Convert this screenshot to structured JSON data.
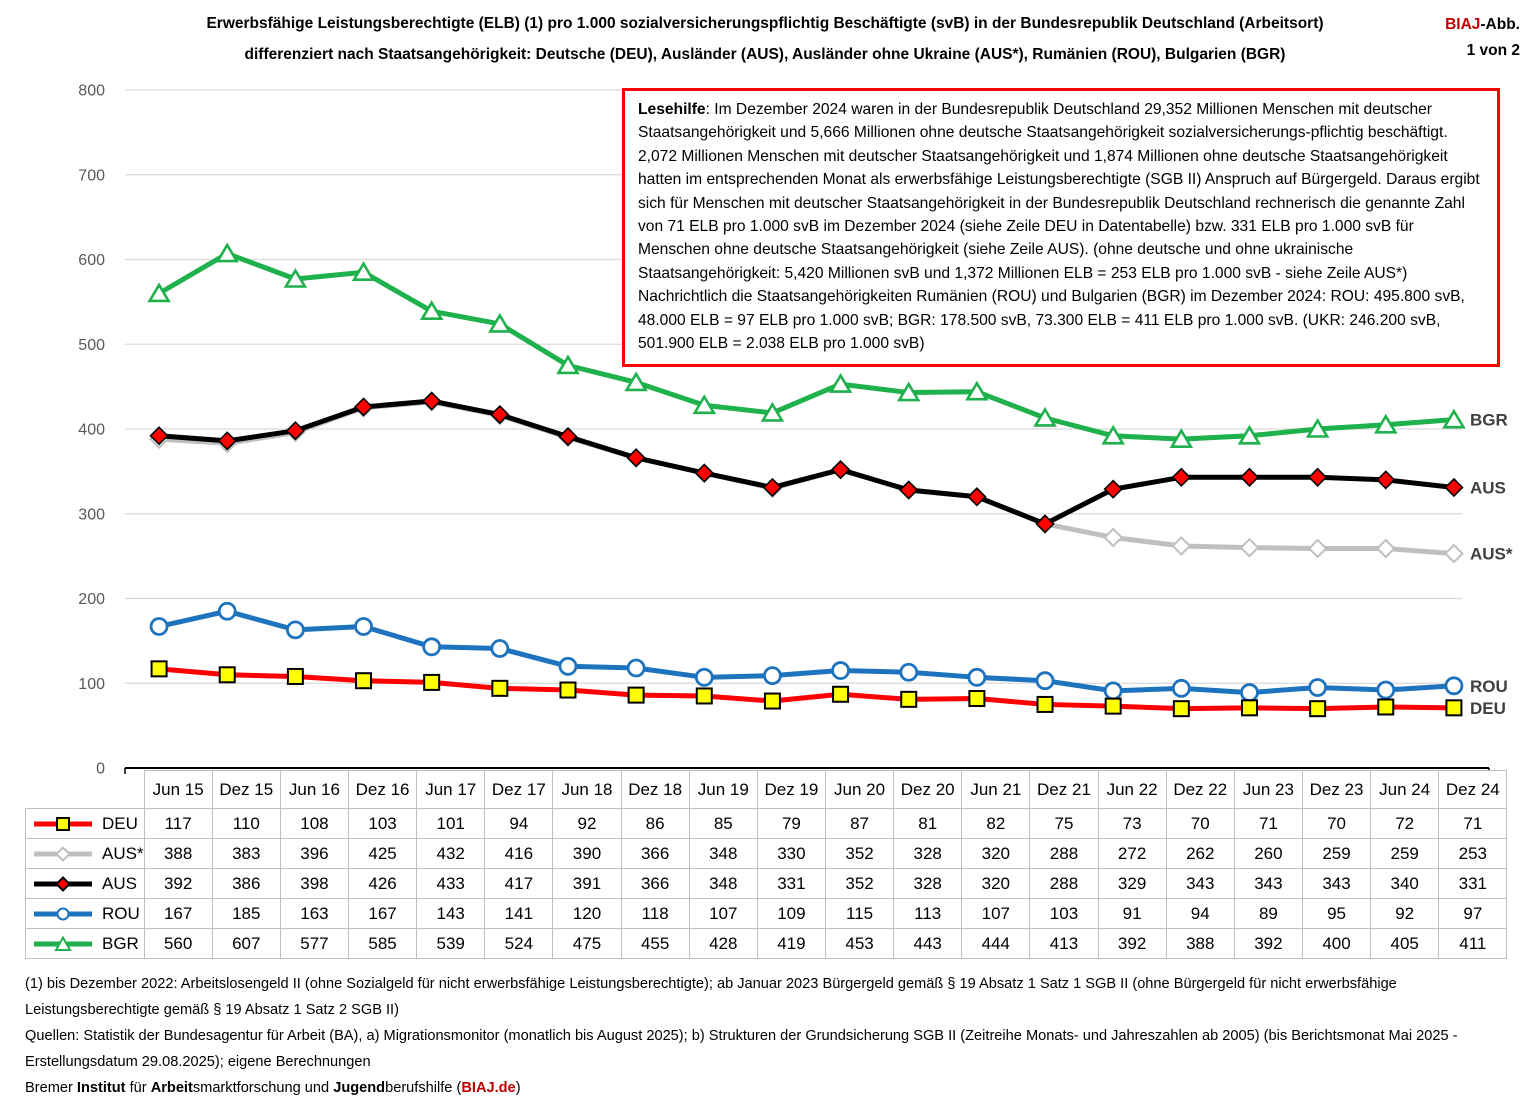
{
  "header": {
    "title_line1": "Erwerbsfähige Leistungsberechtigte (ELB) (1) pro 1.000 sozialversicherungspflichtig Beschäftigte (svB) in der Bundesrepublik Deutschland (Arbeitsort)",
    "title_line2": "differenziert nach Staatsangehörigkeit: Deutsche (DEU),  Ausländer (AUS),  Ausländer ohne Ukraine (AUS*), Rumänien (ROU), Bulgarien (BGR)",
    "corner": {
      "brand": "BIAJ",
      "suffix": "-Abb.",
      "page": "1 von 2",
      "brand_color": "#C00000"
    }
  },
  "lesehilfe": {
    "label": "Lesehilfe",
    "text": ": Im Dezember 2024 waren in der Bundesrepublik Deutschland 29,352 Millionen Menschen mit deutscher Staatsangehörigkeit und 5,666 Millionen ohne deutsche Staatsangehörigkeit sozialversicherungs-pflichtig beschäftigt. 2,072 Millionen Menschen mit deutscher Staatsangehörigkeit und 1,874 Millionen ohne deutsche Staatsangehörigkeit hatten im entsprechenden Monat als erwerbsfähige Leistungsberechtigte (SGB II) Anspruch auf Bürgergeld. Daraus ergibt sich für Menschen mit deutscher Staatsangehörigkeit in der Bundesrepublik Deutschland rechnerisch die genannte Zahl von 71 ELB pro 1.000 svB im Dezember 2024 (siehe Zeile DEU in Datentabelle) bzw. 331 ELB pro 1.000 svB für Menschen ohne deutsche Staatsangehörigkeit (siehe Zeile AUS). (ohne deutsche und ohne ukrainische Staatsangehörigkeit: 5,420 Millionen svB und 1,372 Millionen ELB = 253 ELB pro 1.000 svB - siehe Zeile AUS*) Nachrichtlich die Staatsangehörigkeiten Rumänien (ROU) und Bulgarien (BGR) im Dezember 2024: ROU: 495.800 svB, 48.000 ELB = 97 ELB pro 1.000 svB; BGR: 178.500 svB, 73.300 ELB = 411 ELB pro 1.000 svB. (UKR: 246.200 svB,  501.900 ELB = 2.038 ELB pro 1.000 svB)",
    "border_color": "#FF0000"
  },
  "chart_data": {
    "type": "line",
    "title": "",
    "xlabel": "",
    "ylabel": "",
    "ylim": [
      0,
      800
    ],
    "ytick_step": 100,
    "grid": true,
    "grid_color": "#D9D9D9",
    "axis_color": "#000000",
    "tick_label_color": "#595959",
    "right_label_color": "#3F3F3F",
    "categories": [
      "Jun 15",
      "Dez 15",
      "Jun 16",
      "Dez 16",
      "Jun 17",
      "Dez 17",
      "Jun 18",
      "Dez 18",
      "Jun 19",
      "Dez 19",
      "Jun 20",
      "Dez 20",
      "Jun 21",
      "Dez 21",
      "Jun 22",
      "Dez 22",
      "Jun 23",
      "Dez 23",
      "Jun 24",
      "Dez 24"
    ],
    "series": [
      {
        "name": "DEU",
        "color": "#FF0000",
        "marker": "square",
        "marker_fill": "#FFFF00",
        "marker_edge": "#000000",
        "values": [
          117,
          110,
          108,
          103,
          101,
          94,
          92,
          86,
          85,
          79,
          87,
          81,
          82,
          75,
          73,
          70,
          71,
          70,
          72,
          71
        ]
      },
      {
        "name": "AUS*",
        "color": "#BFBFBF",
        "marker": "diamond",
        "marker_fill": "#FFFFFF",
        "marker_edge": "#BFBFBF",
        "values": [
          388,
          383,
          396,
          425,
          432,
          416,
          390,
          366,
          348,
          330,
          352,
          328,
          320,
          288,
          272,
          262,
          260,
          259,
          259,
          253
        ]
      },
      {
        "name": "AUS",
        "color": "#000000",
        "marker": "diamond",
        "marker_fill": "#FF0000",
        "marker_edge": "#000000",
        "values": [
          392,
          386,
          398,
          426,
          433,
          417,
          391,
          366,
          348,
          331,
          352,
          328,
          320,
          288,
          329,
          343,
          343,
          343,
          340,
          331
        ]
      },
      {
        "name": "ROU",
        "color": "#1E73BE",
        "marker": "circle",
        "marker_fill": "#FFFFFF",
        "marker_edge": "#1E73BE",
        "values": [
          167,
          185,
          163,
          167,
          143,
          141,
          120,
          118,
          107,
          109,
          115,
          113,
          107,
          103,
          91,
          94,
          89,
          95,
          92,
          97
        ]
      },
      {
        "name": "BGR",
        "color": "#1FB14C",
        "marker": "triangle",
        "marker_fill": "#FFFFFF",
        "marker_edge": "#1FB14C",
        "values": [
          560,
          607,
          577,
          585,
          539,
          524,
          475,
          455,
          428,
          419,
          453,
          443,
          444,
          413,
          392,
          388,
          392,
          400,
          405,
          411
        ]
      }
    ],
    "draw_order": [
      "AUS*",
      "AUS",
      "BGR",
      "ROU",
      "DEU"
    ],
    "right_labels": [
      "BGR",
      "AUS",
      "AUS*",
      "ROU",
      "DEU"
    ]
  },
  "table": {
    "row_order": [
      "DEU",
      "AUS*",
      "AUS",
      "ROU",
      "BGR"
    ],
    "border_color": "#BFBFBF"
  },
  "footnotes": {
    "note1": "(1) bis Dezember 2022: Arbeitslosengeld II (ohne Sozialgeld für nicht erwerbsfähige Leistungsberechtigte); ab Januar 2023  Bürgergeld gemäß § 19 Absatz 1 Satz 1 SGB II (ohne Bürgergeld für nicht erwerbsfähige Leistungsberechtigte gemäß § 19 Absatz 1 Satz 2 SGB II)",
    "sources": "Quellen: Statistik der Bundesagentur für Arbeit (BA),  a) Migrationsmonitor (monatlich bis August 2025); b) Strukturen der Grundsicherung SGB II (Zeitreihe Monats- und Jahreszahlen ab 2005) (bis Berichtsmonat Mai 2025 - Erstellungsdatum 29.08.2025); eigene Berechnungen"
  },
  "footer": {
    "segments": [
      {
        "text": "Bremer ",
        "bold": false,
        "color": "#000000"
      },
      {
        "text": "Institut",
        "bold": true,
        "color": "#000000"
      },
      {
        "text": " für ",
        "bold": false,
        "color": "#000000"
      },
      {
        "text": "Arbeit",
        "bold": true,
        "color": "#000000"
      },
      {
        "text": "smarktforschung und ",
        "bold": false,
        "color": "#000000"
      },
      {
        "text": "Jugend",
        "bold": true,
        "color": "#000000"
      },
      {
        "text": "berufshilfe (",
        "bold": false,
        "color": "#000000"
      },
      {
        "text": "BIAJ.de",
        "bold": true,
        "color": "#C00000"
      },
      {
        "text": ")",
        "bold": false,
        "color": "#000000"
      }
    ]
  }
}
